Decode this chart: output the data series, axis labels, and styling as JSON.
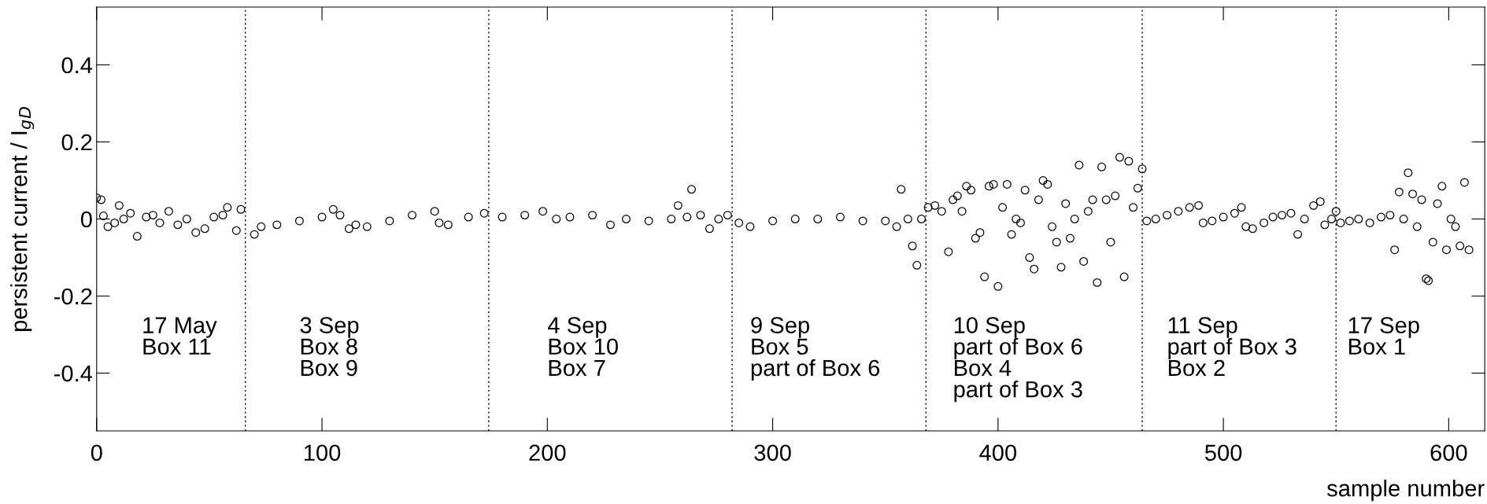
{
  "chart_data": {
    "type": "scatter",
    "xlabel": "sample number",
    "ylabel": "persistent current / I$_{g}$$_{D}$",
    "xlim": [
      0,
      616
    ],
    "ylim": [
      -0.55,
      0.55
    ],
    "xticks": [
      0,
      100,
      200,
      300,
      400,
      500,
      600
    ],
    "yticks": [
      -0.4,
      -0.2,
      {
        "value": 0,
        "label": "0"
      },
      0.2,
      0.4
    ],
    "grid": false,
    "marker": "circle",
    "legend": false,
    "series": [
      {
        "color": "#000000",
        "x": [
          0,
          2,
          3,
          5,
          8,
          10,
          12,
          15,
          18,
          22,
          25,
          28,
          32,
          36,
          40,
          44,
          48,
          52,
          56,
          58,
          62,
          64,
          70,
          73,
          80,
          90,
          100,
          105,
          108,
          112,
          115,
          120,
          130,
          140,
          150,
          152,
          156,
          165,
          172,
          180,
          190,
          198,
          204,
          210,
          220,
          228,
          235,
          245,
          255,
          258,
          262,
          264,
          268,
          272,
          276,
          280,
          285,
          290,
          300,
          310,
          320,
          330,
          340,
          350,
          355,
          357,
          360,
          362,
          364,
          366,
          369,
          372,
          375,
          378,
          380,
          382,
          384,
          386,
          388,
          390,
          392,
          394,
          396,
          398,
          400,
          402,
          404,
          406,
          408,
          410,
          412,
          414,
          416,
          418,
          420,
          422,
          424,
          426,
          428,
          430,
          432,
          434,
          436,
          438,
          440,
          442,
          444,
          446,
          448,
          450,
          452,
          454,
          456,
          458,
          460,
          462,
          464,
          466,
          470,
          475,
          480,
          485,
          489,
          491,
          495,
          500,
          505,
          508,
          510,
          513,
          518,
          522,
          526,
          530,
          533,
          536,
          540,
          543,
          545,
          548,
          550,
          552,
          556,
          560,
          565,
          570,
          574,
          576,
          578,
          580,
          582,
          584,
          586,
          588,
          590,
          591,
          593,
          595,
          597,
          599,
          601,
          603,
          605,
          607,
          609
        ],
        "values": [
          0.055,
          0.05,
          0.008,
          -0.02,
          -0.01,
          0.035,
          0.0,
          0.015,
          -0.045,
          0.005,
          0.01,
          -0.01,
          0.02,
          -0.015,
          0.0,
          -0.035,
          -0.025,
          0.005,
          0.01,
          0.03,
          -0.03,
          0.025,
          -0.04,
          -0.02,
          -0.015,
          -0.005,
          0.005,
          0.025,
          0.01,
          -0.025,
          -0.015,
          -0.02,
          -0.005,
          0.01,
          0.02,
          -0.01,
          -0.015,
          0.005,
          0.015,
          0.005,
          0.01,
          0.02,
          0.0,
          0.005,
          0.01,
          -0.015,
          0.0,
          -0.005,
          0.0,
          0.035,
          0.005,
          0.077,
          0.01,
          -0.025,
          0.0,
          0.01,
          -0.01,
          -0.02,
          -0.005,
          0.0,
          0.0,
          0.005,
          -0.005,
          -0.005,
          -0.02,
          0.077,
          0.0,
          -0.07,
          -0.12,
          0.0,
          0.03,
          0.035,
          0.02,
          -0.085,
          0.05,
          0.06,
          0.02,
          0.085,
          0.075,
          -0.05,
          -0.035,
          -0.15,
          0.085,
          0.09,
          -0.175,
          0.03,
          0.09,
          -0.04,
          0.0,
          -0.01,
          0.075,
          -0.1,
          -0.13,
          0.05,
          0.1,
          0.09,
          -0.02,
          -0.06,
          -0.125,
          0.04,
          -0.05,
          0.0,
          0.14,
          -0.11,
          0.02,
          0.05,
          -0.165,
          0.135,
          0.05,
          -0.06,
          0.06,
          0.16,
          -0.15,
          0.15,
          0.03,
          0.08,
          0.13,
          -0.005,
          0.0,
          0.01,
          0.02,
          0.03,
          0.035,
          -0.01,
          -0.005,
          0.005,
          0.015,
          0.03,
          -0.02,
          -0.025,
          -0.01,
          0.005,
          0.01,
          0.015,
          -0.04,
          0.0,
          0.035,
          0.045,
          -0.015,
          0.0,
          0.02,
          -0.01,
          -0.005,
          0.0,
          -0.01,
          0.005,
          0.01,
          -0.08,
          0.07,
          0.0,
          0.12,
          0.065,
          -0.02,
          0.05,
          -0.155,
          -0.16,
          -0.06,
          0.04,
          0.085,
          -0.08,
          0.0,
          -0.02,
          -0.07,
          0.095,
          -0.08
        ]
      }
    ],
    "ref_lines": [
      {
        "axis": "x",
        "value": 66,
        "line_style": "dotted",
        "color": "#000000"
      },
      {
        "axis": "x",
        "value": 174,
        "line_style": "dotted",
        "color": "#000000"
      },
      {
        "axis": "x",
        "value": 282,
        "line_style": "dotted",
        "color": "#000000"
      },
      {
        "axis": "x",
        "value": 368,
        "line_style": "dotted",
        "color": "#000000"
      },
      {
        "axis": "x",
        "value": 464,
        "line_style": "dotted",
        "color": "#000000"
      },
      {
        "axis": "x",
        "value": 550,
        "line_style": "dotted",
        "color": "#000000"
      }
    ],
    "annotations": [
      "17 May\nBox 11",
      "3 Sep\nBox 8\nBox 9",
      "4 Sep\nBox 10\nBox 7",
      "9 Sep\nBox 5\npart of Box 6",
      "10 Sep\npart of Box 6\nBox 4\npart of Box 3",
      "11 Sep\npart of Box 3\nBox 2",
      "17 Sep\nBox 1"
    ]
  }
}
